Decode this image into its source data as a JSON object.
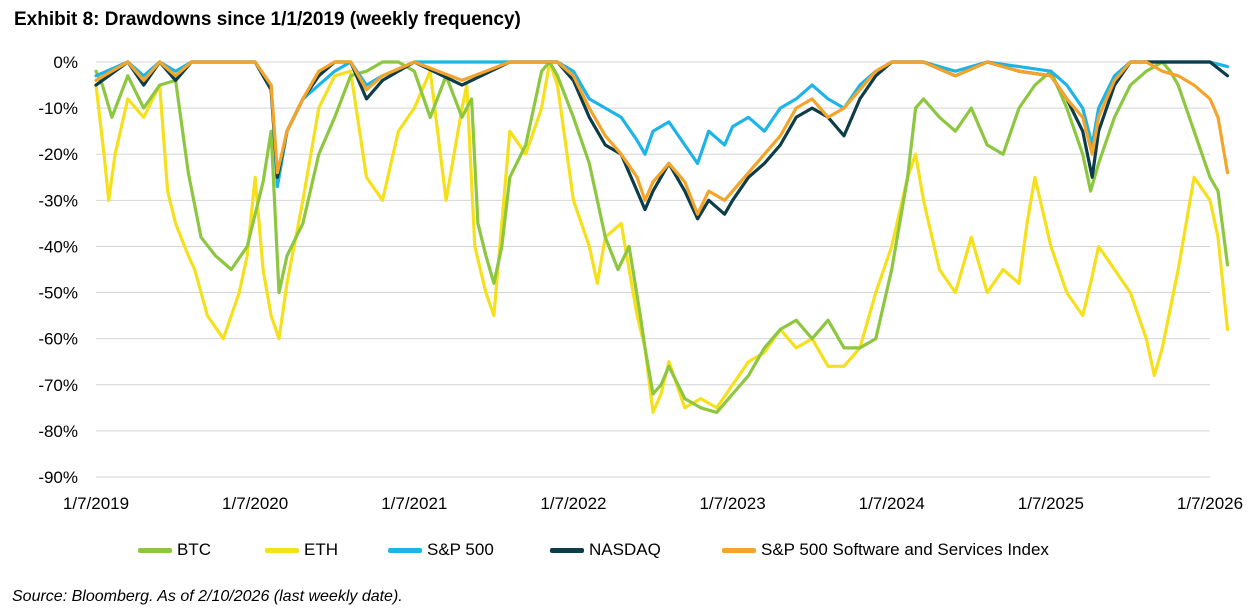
{
  "title": "Exhibit 8: Drawdowns since 1/1/2019 (weekly frequency)",
  "source": "Source: Bloomberg. As of 2/10/2026 (last weekly date).",
  "chart_data": {
    "type": "line",
    "x_tick_labels": [
      "1/7/2019",
      "1/7/2020",
      "1/7/2021",
      "1/7/2022",
      "1/7/2023",
      "1/7/2024",
      "1/7/2025",
      "1/7/2026"
    ],
    "y_tick_labels": [
      "0%",
      "-10%",
      "-20%",
      "-30%",
      "-40%",
      "-50%",
      "-60%",
      "-70%",
      "-80%",
      "-90%"
    ],
    "ylim": [
      -90,
      0
    ],
    "xlim": [
      2019.0,
      2026.0
    ],
    "x_unit": "year",
    "y_unit": "percent drawdown",
    "grid": true,
    "legend_position": "bottom",
    "series": [
      {
        "name": "BTC",
        "color": "#8dc63f",
        "x": [
          2019.0,
          2019.04,
          2019.1,
          2019.2,
          2019.3,
          2019.4,
          2019.5,
          2019.58,
          2019.66,
          2019.75,
          2019.85,
          2019.95,
          2020.05,
          2020.1,
          2020.15,
          2020.2,
          2020.3,
          2020.4,
          2020.5,
          2020.6,
          2020.7,
          2020.8,
          2020.9,
          2021.0,
          2021.1,
          2021.2,
          2021.3,
          2021.36,
          2021.4,
          2021.45,
          2021.5,
          2021.55,
          2021.6,
          2021.7,
          2021.8,
          2021.85,
          2021.9,
          2022.0,
          2022.1,
          2022.2,
          2022.28,
          2022.35,
          2022.42,
          2022.45,
          2022.5,
          2022.55,
          2022.6,
          2022.7,
          2022.8,
          2022.9,
          2023.0,
          2023.1,
          2023.2,
          2023.3,
          2023.4,
          2023.5,
          2023.6,
          2023.7,
          2023.8,
          2023.9,
          2024.0,
          2024.1,
          2024.15,
          2024.2,
          2024.3,
          2024.4,
          2024.5,
          2024.6,
          2024.7,
          2024.8,
          2024.9,
          2025.0,
          2025.1,
          2025.2,
          2025.25,
          2025.3,
          2025.4,
          2025.5,
          2025.6,
          2025.7,
          2025.75,
          2025.8,
          2025.9,
          2026.0,
          2026.05,
          2026.11
        ],
        "values": [
          -2,
          -5,
          -12,
          -3,
          -10,
          -5,
          -4,
          -24,
          -38,
          -42,
          -45,
          -40,
          -26,
          -15,
          -50,
          -42,
          -35,
          -20,
          -12,
          -3,
          -2,
          0,
          0,
          -2,
          -12,
          -3,
          -12,
          -8,
          -35,
          -42,
          -48,
          -40,
          -25,
          -18,
          -2,
          0,
          -3,
          -12,
          -22,
          -38,
          -45,
          -40,
          -55,
          -62,
          -72,
          -70,
          -66,
          -73,
          -75,
          -76,
          -72,
          -68,
          -62,
          -58,
          -56,
          -60,
          -56,
          -62,
          -62,
          -60,
          -45,
          -25,
          -10,
          -8,
          -12,
          -15,
          -10,
          -18,
          -20,
          -10,
          -5,
          -2,
          -10,
          -20,
          -28,
          -22,
          -12,
          -5,
          -2,
          0,
          -2,
          -5,
          -15,
          -25,
          -28,
          -44
        ]
      },
      {
        "name": "ETH",
        "color": "#f6e01c",
        "x": [
          2019.0,
          2019.05,
          2019.08,
          2019.12,
          2019.2,
          2019.3,
          2019.4,
          2019.45,
          2019.5,
          2019.58,
          2019.62,
          2019.7,
          2019.8,
          2019.9,
          2019.95,
          2020.0,
          2020.05,
          2020.1,
          2020.15,
          2020.2,
          2020.3,
          2020.4,
          2020.5,
          2020.6,
          2020.7,
          2020.8,
          2020.9,
          2021.0,
          2021.1,
          2021.2,
          2021.3,
          2021.33,
          2021.38,
          2021.45,
          2021.5,
          2021.55,
          2021.6,
          2021.7,
          2021.8,
          2021.85,
          2021.9,
          2022.0,
          2022.1,
          2022.15,
          2022.2,
          2022.3,
          2022.4,
          2022.45,
          2022.5,
          2022.55,
          2022.6,
          2022.7,
          2022.8,
          2022.9,
          2023.0,
          2023.1,
          2023.2,
          2023.3,
          2023.4,
          2023.5,
          2023.6,
          2023.7,
          2023.8,
          2023.9,
          2024.0,
          2024.1,
          2024.15,
          2024.2,
          2024.3,
          2024.4,
          2024.5,
          2024.6,
          2024.7,
          2024.8,
          2024.85,
          2024.9,
          2025.0,
          2025.1,
          2025.2,
          2025.25,
          2025.3,
          2025.4,
          2025.5,
          2025.6,
          2025.65,
          2025.7,
          2025.8,
          2025.9,
          2026.0,
          2026.05,
          2026.11
        ],
        "values": [
          -5,
          -20,
          -30,
          -20,
          -8,
          -12,
          -5,
          -28,
          -35,
          -42,
          -45,
          -55,
          -60,
          -50,
          -42,
          -25,
          -45,
          -55,
          -60,
          -48,
          -30,
          -10,
          -3,
          -2,
          -25,
          -30,
          -15,
          -10,
          -2,
          -30,
          -10,
          -5,
          -40,
          -50,
          -55,
          -35,
          -15,
          -20,
          -10,
          0,
          -5,
          -30,
          -40,
          -48,
          -38,
          -35,
          -55,
          -62,
          -76,
          -72,
          -65,
          -75,
          -73,
          -75,
          -70,
          -65,
          -63,
          -58,
          -62,
          -60,
          -66,
          -66,
          -62,
          -50,
          -40,
          -25,
          -20,
          -30,
          -45,
          -50,
          -38,
          -50,
          -45,
          -48,
          -35,
          -25,
          -40,
          -50,
          -55,
          -48,
          -40,
          -45,
          -50,
          -60,
          -68,
          -62,
          -45,
          -25,
          -30,
          -38,
          -58
        ]
      },
      {
        "name": "S&P 500",
        "color": "#1fb4e6",
        "x": [
          2019.0,
          2019.2,
          2019.3,
          2019.4,
          2019.5,
          2019.6,
          2019.8,
          2020.0,
          2020.1,
          2020.14,
          2020.2,
          2020.3,
          2020.4,
          2020.5,
          2020.6,
          2020.7,
          2020.8,
          2021.0,
          2021.3,
          2021.6,
          2021.9,
          2022.0,
          2022.1,
          2022.2,
          2022.3,
          2022.4,
          2022.45,
          2022.5,
          2022.6,
          2022.7,
          2022.78,
          2022.85,
          2022.95,
          2023.0,
          2023.1,
          2023.2,
          2023.3,
          2023.4,
          2023.5,
          2023.6,
          2023.7,
          2023.8,
          2023.9,
          2024.0,
          2024.2,
          2024.4,
          2024.6,
          2024.8,
          2025.0,
          2025.1,
          2025.2,
          2025.26,
          2025.3,
          2025.4,
          2025.5,
          2025.6,
          2025.8,
          2026.0,
          2026.11
        ],
        "values": [
          -3,
          0,
          -3,
          0,
          -2,
          0,
          0,
          0,
          -5,
          -27,
          -15,
          -8,
          -5,
          -2,
          0,
          -5,
          -3,
          0,
          0,
          0,
          0,
          -2,
          -8,
          -10,
          -12,
          -17,
          -20,
          -15,
          -13,
          -18,
          -22,
          -15,
          -18,
          -14,
          -12,
          -15,
          -10,
          -8,
          -5,
          -8,
          -10,
          -5,
          -2,
          0,
          0,
          -2,
          0,
          -1,
          -2,
          -5,
          -10,
          -18,
          -10,
          -3,
          0,
          0,
          0,
          0,
          -1
        ]
      },
      {
        "name": "NASDAQ",
        "color": "#0d3d48",
        "x": [
          2019.0,
          2019.2,
          2019.3,
          2019.4,
          2019.5,
          2019.6,
          2019.8,
          2020.0,
          2020.1,
          2020.14,
          2020.2,
          2020.3,
          2020.4,
          2020.5,
          2020.6,
          2020.7,
          2020.8,
          2021.0,
          2021.3,
          2021.6,
          2021.9,
          2022.0,
          2022.1,
          2022.2,
          2022.3,
          2022.4,
          2022.45,
          2022.5,
          2022.6,
          2022.7,
          2022.78,
          2022.85,
          2022.95,
          2023.0,
          2023.1,
          2023.2,
          2023.3,
          2023.4,
          2023.5,
          2023.6,
          2023.7,
          2023.8,
          2023.9,
          2024.0,
          2024.2,
          2024.4,
          2024.6,
          2024.8,
          2025.0,
          2025.1,
          2025.2,
          2025.26,
          2025.3,
          2025.4,
          2025.5,
          2025.6,
          2025.8,
          2026.0,
          2026.11
        ],
        "values": [
          -5,
          0,
          -5,
          0,
          -4,
          0,
          0,
          0,
          -6,
          -25,
          -15,
          -8,
          -3,
          0,
          0,
          -8,
          -4,
          0,
          -5,
          0,
          0,
          -4,
          -12,
          -18,
          -20,
          -28,
          -32,
          -28,
          -22,
          -28,
          -34,
          -30,
          -33,
          -30,
          -25,
          -22,
          -18,
          -12,
          -10,
          -12,
          -16,
          -8,
          -3,
          0,
          0,
          -3,
          0,
          -2,
          -3,
          -8,
          -15,
          -25,
          -15,
          -5,
          0,
          0,
          0,
          0,
          -3
        ]
      },
      {
        "name": "S&P 500 Software and Services Index",
        "color": "#f5a42a",
        "x": [
          2019.0,
          2019.2,
          2019.3,
          2019.4,
          2019.5,
          2019.6,
          2019.8,
          2020.0,
          2020.1,
          2020.14,
          2020.2,
          2020.3,
          2020.4,
          2020.5,
          2020.6,
          2020.7,
          2020.8,
          2021.0,
          2021.3,
          2021.6,
          2021.9,
          2022.0,
          2022.1,
          2022.2,
          2022.3,
          2022.4,
          2022.45,
          2022.5,
          2022.6,
          2022.7,
          2022.78,
          2022.85,
          2022.95,
          2023.0,
          2023.1,
          2023.2,
          2023.3,
          2023.4,
          2023.5,
          2023.6,
          2023.7,
          2023.8,
          2023.9,
          2024.0,
          2024.2,
          2024.4,
          2024.6,
          2024.8,
          2025.0,
          2025.1,
          2025.2,
          2025.26,
          2025.3,
          2025.4,
          2025.5,
          2025.6,
          2025.7,
          2025.8,
          2025.9,
          2026.0,
          2026.05,
          2026.11
        ],
        "values": [
          -4,
          0,
          -4,
          0,
          -3,
          0,
          0,
          0,
          -5,
          -24,
          -15,
          -8,
          -2,
          0,
          0,
          -6,
          -3,
          0,
          -4,
          0,
          0,
          -3,
          -10,
          -16,
          -20,
          -25,
          -30,
          -26,
          -22,
          -26,
          -33,
          -28,
          -30,
          -28,
          -24,
          -20,
          -16,
          -10,
          -8,
          -12,
          -10,
          -6,
          -2,
          0,
          0,
          -3,
          0,
          -2,
          -3,
          -8,
          -12,
          -20,
          -12,
          -4,
          0,
          0,
          -2,
          -3,
          -5,
          -8,
          -12,
          -24
        ]
      }
    ]
  }
}
